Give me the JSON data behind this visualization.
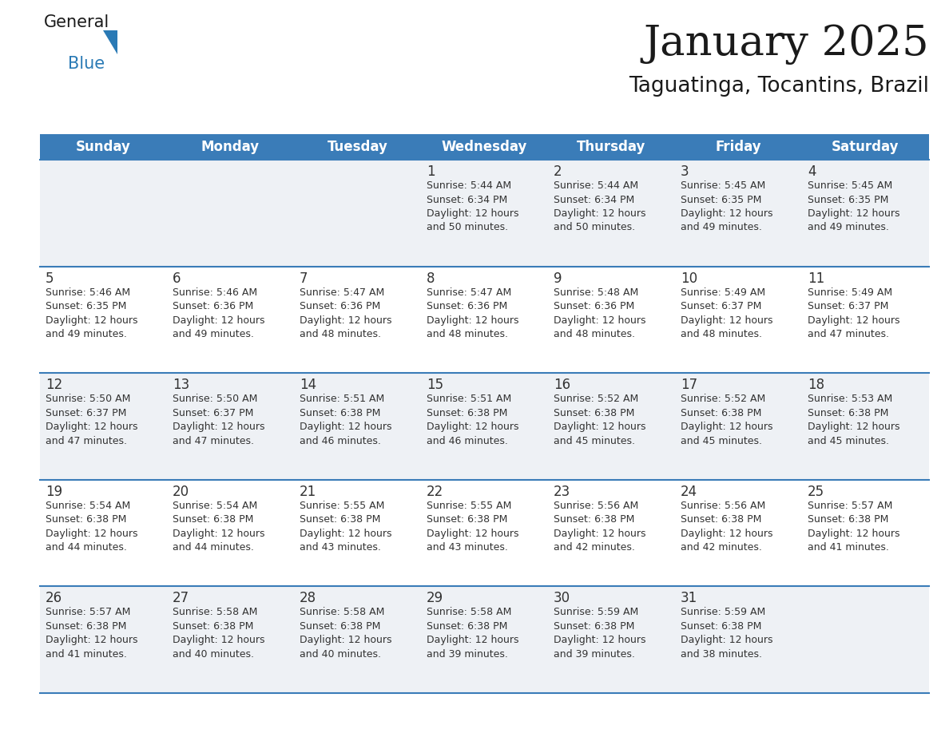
{
  "title": "January 2025",
  "subtitle": "Taguatinga, Tocantins, Brazil",
  "header_color": "#3a7cb8",
  "header_text_color": "#ffffff",
  "row_colors": [
    "#eef1f5",
    "#ffffff"
  ],
  "border_color": "#3a7cb8",
  "text_color": "#333333",
  "days_of_week": [
    "Sunday",
    "Monday",
    "Tuesday",
    "Wednesday",
    "Thursday",
    "Friday",
    "Saturday"
  ],
  "calendar_data": [
    [
      {
        "day": "",
        "info": ""
      },
      {
        "day": "",
        "info": ""
      },
      {
        "day": "",
        "info": ""
      },
      {
        "day": "1",
        "info": "Sunrise: 5:44 AM\nSunset: 6:34 PM\nDaylight: 12 hours\nand 50 minutes."
      },
      {
        "day": "2",
        "info": "Sunrise: 5:44 AM\nSunset: 6:34 PM\nDaylight: 12 hours\nand 50 minutes."
      },
      {
        "day": "3",
        "info": "Sunrise: 5:45 AM\nSunset: 6:35 PM\nDaylight: 12 hours\nand 49 minutes."
      },
      {
        "day": "4",
        "info": "Sunrise: 5:45 AM\nSunset: 6:35 PM\nDaylight: 12 hours\nand 49 minutes."
      }
    ],
    [
      {
        "day": "5",
        "info": "Sunrise: 5:46 AM\nSunset: 6:35 PM\nDaylight: 12 hours\nand 49 minutes."
      },
      {
        "day": "6",
        "info": "Sunrise: 5:46 AM\nSunset: 6:36 PM\nDaylight: 12 hours\nand 49 minutes."
      },
      {
        "day": "7",
        "info": "Sunrise: 5:47 AM\nSunset: 6:36 PM\nDaylight: 12 hours\nand 48 minutes."
      },
      {
        "day": "8",
        "info": "Sunrise: 5:47 AM\nSunset: 6:36 PM\nDaylight: 12 hours\nand 48 minutes."
      },
      {
        "day": "9",
        "info": "Sunrise: 5:48 AM\nSunset: 6:36 PM\nDaylight: 12 hours\nand 48 minutes."
      },
      {
        "day": "10",
        "info": "Sunrise: 5:49 AM\nSunset: 6:37 PM\nDaylight: 12 hours\nand 48 minutes."
      },
      {
        "day": "11",
        "info": "Sunrise: 5:49 AM\nSunset: 6:37 PM\nDaylight: 12 hours\nand 47 minutes."
      }
    ],
    [
      {
        "day": "12",
        "info": "Sunrise: 5:50 AM\nSunset: 6:37 PM\nDaylight: 12 hours\nand 47 minutes."
      },
      {
        "day": "13",
        "info": "Sunrise: 5:50 AM\nSunset: 6:37 PM\nDaylight: 12 hours\nand 47 minutes."
      },
      {
        "day": "14",
        "info": "Sunrise: 5:51 AM\nSunset: 6:38 PM\nDaylight: 12 hours\nand 46 minutes."
      },
      {
        "day": "15",
        "info": "Sunrise: 5:51 AM\nSunset: 6:38 PM\nDaylight: 12 hours\nand 46 minutes."
      },
      {
        "day": "16",
        "info": "Sunrise: 5:52 AM\nSunset: 6:38 PM\nDaylight: 12 hours\nand 45 minutes."
      },
      {
        "day": "17",
        "info": "Sunrise: 5:52 AM\nSunset: 6:38 PM\nDaylight: 12 hours\nand 45 minutes."
      },
      {
        "day": "18",
        "info": "Sunrise: 5:53 AM\nSunset: 6:38 PM\nDaylight: 12 hours\nand 45 minutes."
      }
    ],
    [
      {
        "day": "19",
        "info": "Sunrise: 5:54 AM\nSunset: 6:38 PM\nDaylight: 12 hours\nand 44 minutes."
      },
      {
        "day": "20",
        "info": "Sunrise: 5:54 AM\nSunset: 6:38 PM\nDaylight: 12 hours\nand 44 minutes."
      },
      {
        "day": "21",
        "info": "Sunrise: 5:55 AM\nSunset: 6:38 PM\nDaylight: 12 hours\nand 43 minutes."
      },
      {
        "day": "22",
        "info": "Sunrise: 5:55 AM\nSunset: 6:38 PM\nDaylight: 12 hours\nand 43 minutes."
      },
      {
        "day": "23",
        "info": "Sunrise: 5:56 AM\nSunset: 6:38 PM\nDaylight: 12 hours\nand 42 minutes."
      },
      {
        "day": "24",
        "info": "Sunrise: 5:56 AM\nSunset: 6:38 PM\nDaylight: 12 hours\nand 42 minutes."
      },
      {
        "day": "25",
        "info": "Sunrise: 5:57 AM\nSunset: 6:38 PM\nDaylight: 12 hours\nand 41 minutes."
      }
    ],
    [
      {
        "day": "26",
        "info": "Sunrise: 5:57 AM\nSunset: 6:38 PM\nDaylight: 12 hours\nand 41 minutes."
      },
      {
        "day": "27",
        "info": "Sunrise: 5:58 AM\nSunset: 6:38 PM\nDaylight: 12 hours\nand 40 minutes."
      },
      {
        "day": "28",
        "info": "Sunrise: 5:58 AM\nSunset: 6:38 PM\nDaylight: 12 hours\nand 40 minutes."
      },
      {
        "day": "29",
        "info": "Sunrise: 5:58 AM\nSunset: 6:38 PM\nDaylight: 12 hours\nand 39 minutes."
      },
      {
        "day": "30",
        "info": "Sunrise: 5:59 AM\nSunset: 6:38 PM\nDaylight: 12 hours\nand 39 minutes."
      },
      {
        "day": "31",
        "info": "Sunrise: 5:59 AM\nSunset: 6:38 PM\nDaylight: 12 hours\nand 38 minutes."
      },
      {
        "day": "",
        "info": ""
      }
    ]
  ],
  "title_fontsize": 38,
  "subtitle_fontsize": 19,
  "header_fontsize": 12,
  "day_num_fontsize": 12,
  "info_fontsize": 9.0,
  "fig_width": 11.88,
  "fig_height": 9.18,
  "fig_dpi": 100
}
